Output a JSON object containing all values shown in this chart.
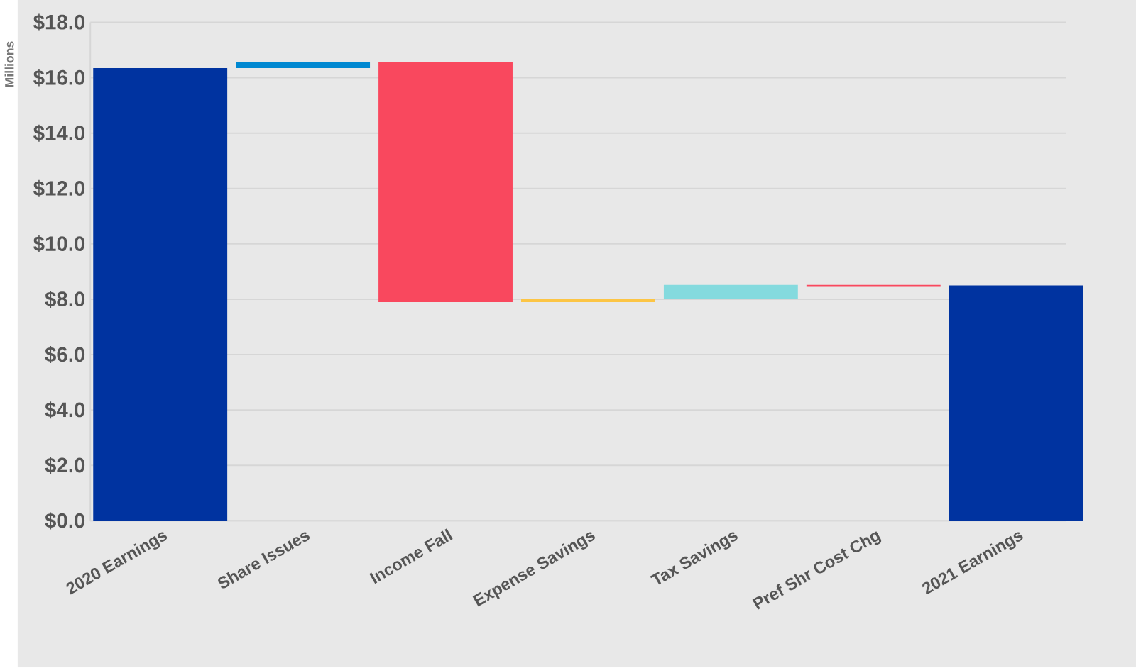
{
  "chart_data": {
    "type": "bar",
    "ylabel": "Millions",
    "categories": [
      "2020 Earnings",
      "Share Issues",
      "Income Fall",
      "Expense Savings",
      "Tax Savings",
      "Pref Shr Cost Chg",
      "2021 Earnings"
    ],
    "base": [
      0,
      16.35,
      16.58,
      7.9,
      8.0,
      8.52,
      0
    ],
    "values": [
      16.35,
      0.23,
      -8.68,
      0.1,
      0.52,
      -0.07,
      8.5
    ],
    "colors": [
      "#0033a0",
      "#0088d1",
      "#f9485e",
      "#fcc545",
      "#84dade",
      "#f9485e",
      "#0033a0"
    ],
    "ylim": [
      0,
      18
    ],
    "yticks": [
      {
        "value": 0,
        "label": "$0.0"
      },
      {
        "value": 2,
        "label": "$2.0"
      },
      {
        "value": 4,
        "label": "$4.0"
      },
      {
        "value": 6,
        "label": "$6.0"
      },
      {
        "value": 8,
        "label": "$8.0"
      },
      {
        "value": 10,
        "label": "$10.0"
      },
      {
        "value": 12,
        "label": "$12.0"
      },
      {
        "value": 14,
        "label": "$14.0"
      },
      {
        "value": 16,
        "label": "$16.0"
      },
      {
        "value": 18,
        "label": "$18.0"
      }
    ],
    "grid": "y"
  }
}
